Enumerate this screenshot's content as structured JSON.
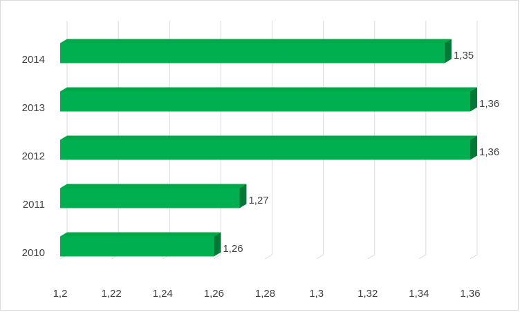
{
  "chart_data": {
    "type": "bar",
    "orientation": "horizontal",
    "style": "3d",
    "categories": [
      "2010",
      "2011",
      "2012",
      "2013",
      "2014"
    ],
    "values": [
      1.26,
      1.27,
      1.36,
      1.36,
      1.35
    ],
    "value_labels": [
      "1,26",
      "1,27",
      "1,36",
      "1,36",
      "1,35"
    ],
    "x_ticks": [
      1.2,
      1.22,
      1.24,
      1.26,
      1.28,
      1.3,
      1.32,
      1.34,
      1.36
    ],
    "x_tick_labels": [
      "1,2",
      "1,22",
      "1,24",
      "1,26",
      "1,28",
      "1,3",
      "1,32",
      "1,34",
      "1,36"
    ],
    "xlim": [
      1.2,
      1.36
    ],
    "title": "",
    "xlabel": "",
    "ylabel": "",
    "grid": "vertical",
    "legend": "none",
    "colors": {
      "bar_front": "#00b050",
      "bar_top": "#00a84a",
      "bar_side": "#007a36",
      "grid": "#d9d9d9",
      "text": "#404040"
    }
  }
}
